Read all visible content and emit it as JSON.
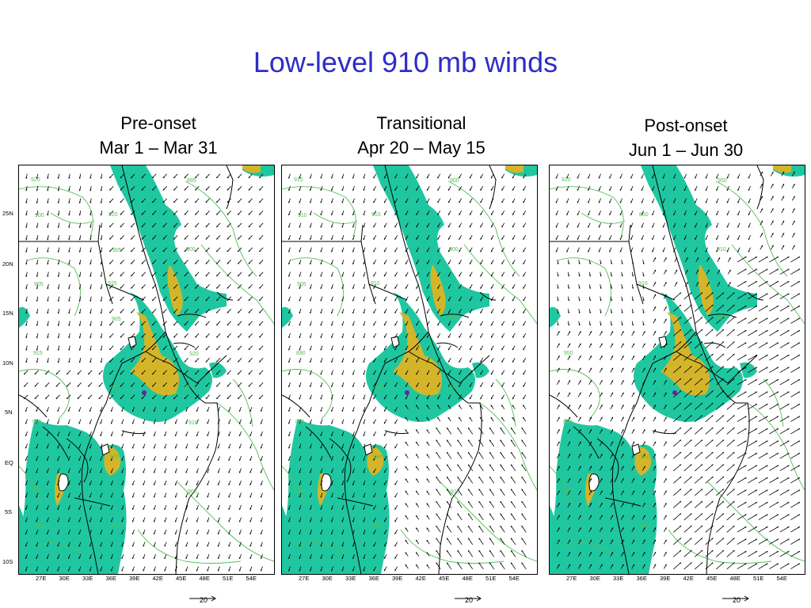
{
  "title": "Low-level 910 mb winds",
  "panels": [
    {
      "line1": "Pre-onset",
      "line2": "Mar 1 – Mar 31"
    },
    {
      "line1": "Transitional",
      "line2": "Apr 20 – May 15"
    },
    {
      "line1": "Post-onset",
      "line2": "Jun 1 – Jun 30"
    }
  ],
  "lat_labels": [
    "25N",
    "20N",
    "15N",
    "10N",
    "5N",
    "EQ",
    "5S",
    "10S"
  ],
  "lon_labels": [
    "27E",
    "30E",
    "33E",
    "36E",
    "39E",
    "42E",
    "45E",
    "48E",
    "51E",
    "54E"
  ],
  "reference_vector": "20",
  "contour_labels": {
    "p1": [
      "920",
      "925",
      "910",
      "915",
      "920",
      "910",
      "915",
      "910",
      "900",
      "915",
      "920",
      "895",
      "905",
      "910",
      "905",
      "900",
      "905",
      "910",
      "910",
      "905",
      "920"
    ],
    "p2": [
      "915",
      "910",
      "900",
      "905",
      "910",
      "900",
      "895",
      "900",
      "900",
      "890",
      "895",
      "900",
      "905",
      "925",
      "910",
      "910"
    ],
    "p3": [
      "920",
      "910",
      "870",
      "900",
      "860",
      "900",
      "880",
      "900",
      "910",
      "950",
      "910",
      "950"
    ]
  },
  "colors": {
    "title": "#2d2dc8",
    "terrain_mid": "#1fc7a0",
    "terrain_high": "#d4b52a",
    "peak": "#7020a0",
    "contour": "#55c055",
    "wind": "#000000"
  },
  "wind_regimes": [
    "northeasterly",
    "transitional",
    "southwesterly"
  ]
}
